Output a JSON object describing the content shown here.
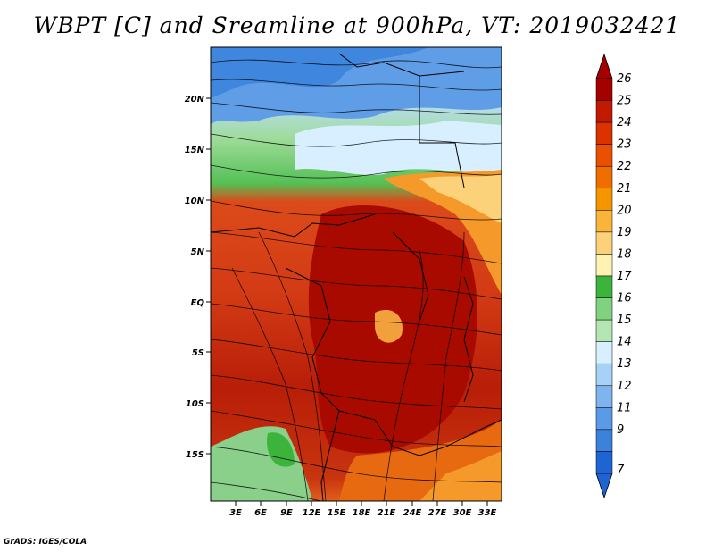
{
  "title": "WBPT [C] and Sreamline at 900hPa, VT: 2019032421",
  "credit": "GrADS: IGES/COLA",
  "lat_ticks": [
    "20N",
    "15N",
    "10N",
    "5N",
    "EQ",
    "5S",
    "10S",
    "15S"
  ],
  "lon_ticks": [
    "3E",
    "6E",
    "9E",
    "12E",
    "15E",
    "18E",
    "21E",
    "24E",
    "27E",
    "30E",
    "33E"
  ],
  "colorbar": {
    "levels": [
      "26",
      "25",
      "24",
      "23",
      "22",
      "21",
      "20",
      "19",
      "18",
      "17",
      "16",
      "15",
      "14",
      "13",
      "12",
      "11",
      "9",
      "7"
    ],
    "colors": [
      "#a50000",
      "#c21a00",
      "#dc3200",
      "#eb5000",
      "#f06e00",
      "#f59600",
      "#f9b43c",
      "#fbd27a",
      "#fff3b4",
      "#3cb43c",
      "#7fd27f",
      "#b4e6b4",
      "#d7efff",
      "#a7d1f7",
      "#7fb4ef",
      "#5a9ae6",
      "#3c82dc",
      "#1e64d2"
    ]
  }
}
